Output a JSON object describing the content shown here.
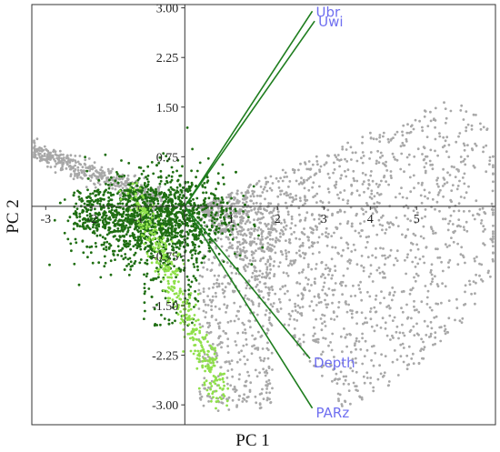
{
  "chart_data": {
    "type": "scatter",
    "title": "",
    "xlabel": "PC 1",
    "ylabel": "PC 2",
    "xlim": [
      -3.3,
      6.7
    ],
    "ylim": [
      -3.3,
      3.05
    ],
    "x_ticks": [
      -3,
      -2,
      -1,
      1,
      2,
      3,
      4,
      5
    ],
    "y_ticks": [
      3.0,
      2.25,
      1.5,
      0.75,
      -0.75,
      -1.5,
      -2.25,
      -3.0
    ],
    "y_tick_labels": [
      "3.00",
      "2.25",
      "1.50",
      "0.75",
      "-0.75",
      "-1.50",
      "-2.25",
      "-3.00"
    ],
    "grid": false,
    "colors": {
      "group_grey": "#a8a8a8",
      "group_dark_green": "#1f6e12",
      "group_light_green": "#8fe04a",
      "vector_line": "#1e7d1e",
      "vector_label": "#6f6ff0",
      "axis": "#333333"
    },
    "point_groups": [
      {
        "color_key": "group_grey",
        "point_count": 2600,
        "regions": [
          {
            "x": [
              0.0,
              6.5
            ],
            "y": [
              -3.2,
              3.0
            ],
            "shape": "fan"
          },
          {
            "x": [
              -3.3,
              -0.5
            ],
            "y": [
              0.0,
              0.9
            ],
            "shape": "left_arm"
          }
        ]
      },
      {
        "color_key": "group_dark_green",
        "point_count": 1800,
        "regions": [
          {
            "x": [
              -2.5,
              1.2
            ],
            "y": [
              -1.8,
              0.9
            ],
            "shape": "core"
          }
        ]
      },
      {
        "color_key": "group_light_green",
        "point_count": 380,
        "regions": [
          {
            "x": [
              -1.3,
              0.9
            ],
            "y": [
              -3.0,
              0.6
            ],
            "shape": "lower_band"
          }
        ]
      }
    ],
    "vectors": [
      {
        "label": "Ubr",
        "x": 2.75,
        "y": 2.95
      },
      {
        "label": "Uwi",
        "x": 2.8,
        "y": 2.8
      },
      {
        "label": "Depth",
        "x": 2.7,
        "y": -2.3
      },
      {
        "label": "PARz",
        "x": 2.75,
        "y": -3.05
      }
    ]
  }
}
